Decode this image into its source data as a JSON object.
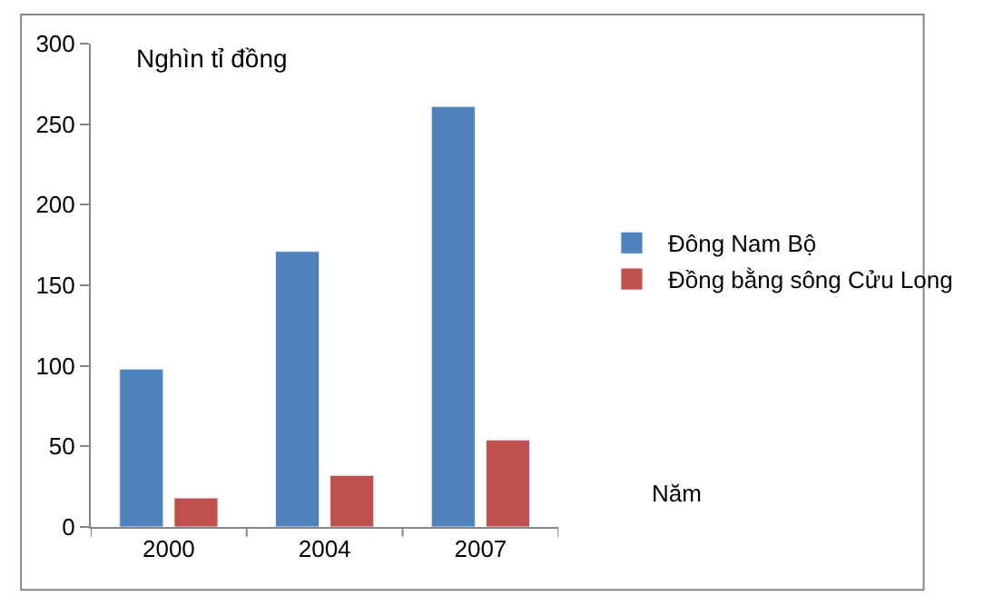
{
  "chart_data": {
    "type": "bar",
    "ylabel": "Nghìn tỉ đồng",
    "xlabel": "Năm",
    "categories": [
      "2000",
      "2004",
      "2007"
    ],
    "series": [
      {
        "name": "Đông Nam Bộ",
        "color": "#4f81bd",
        "values": [
          98,
          171,
          261
        ]
      },
      {
        "name": "Đồng bằng sông Cửu Long",
        "color": "#c0504d",
        "values": [
          18,
          32,
          54
        ]
      }
    ],
    "ylim": [
      0,
      300
    ],
    "yticks": [
      0,
      50,
      100,
      150,
      200,
      250,
      300
    ],
    "legend": "right"
  }
}
